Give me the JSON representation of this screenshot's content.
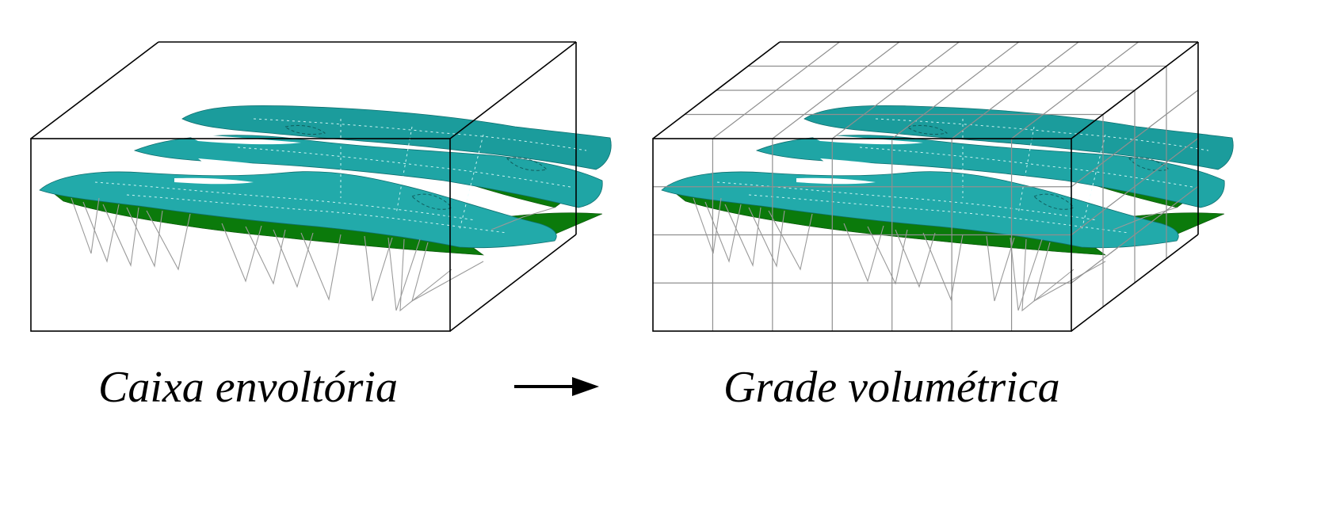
{
  "panels": [
    {
      "caption": "Caixa envoltória"
    },
    {
      "caption": "Grade volumétrica"
    }
  ],
  "colors": {
    "surface_teal": "#1fa5a5",
    "surface_teal_dark": "#148a8a",
    "surface_green": "#0b7a0b",
    "box_outline": "#000000",
    "grid": "#8f8f8f",
    "drillholes": "#9a9a9a"
  },
  "icons": {
    "arrow": "right-arrow-icon"
  }
}
